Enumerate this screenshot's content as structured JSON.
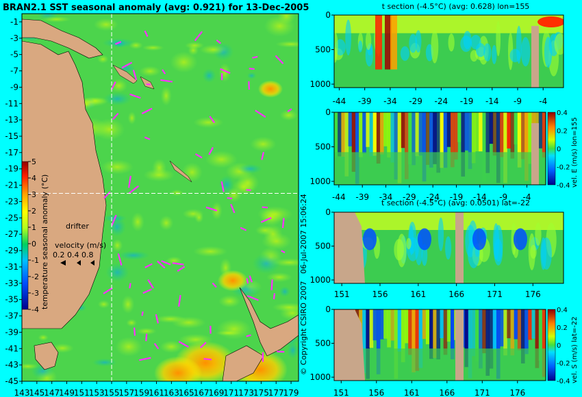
{
  "title": "BRAN2.1 SST seasonal anomaly (avg: 0.921) for 13-Dec-2005",
  "side_text": "06-Jul-2007 15:06:24",
  "copyright": "© Copyright CSIRO 2007",
  "colors": {
    "background": "#00ffff",
    "land": "#d9a880",
    "section_land": "#c8a68a"
  },
  "chart_data": [
    {
      "type": "heatmap",
      "name": "map",
      "title": "BRAN2.1 SST seasonal anomaly (avg: 0.921) for 13-Dec-2005",
      "x_ticks": [
        "143",
        "145",
        "147",
        "149",
        "151",
        "153",
        "155",
        "157",
        "159",
        "161",
        "163",
        "165",
        "167",
        "169",
        "171",
        "173",
        "175",
        "177",
        "179"
      ],
      "y_ticks": [
        "-1",
        "-3",
        "-5",
        "-7",
        "-9",
        "-11",
        "-13",
        "-15",
        "-17",
        "-19",
        "-21",
        "-23",
        "-25",
        "-27",
        "-29",
        "-31",
        "-33",
        "-35",
        "-37",
        "-39",
        "-41",
        "-43",
        "-45"
      ],
      "xlim": [
        143,
        180
      ],
      "ylim": [
        -45,
        0
      ],
      "crosshair": {
        "lon": 155,
        "lat": -22
      },
      "colorbar": {
        "label": "temperature seasonal anomaly (°C)",
        "range": [
          -4,
          5
        ],
        "ticks": [
          "5",
          "4",
          "3",
          "2",
          "1",
          "0",
          "-1",
          "-2",
          "-3",
          "-4"
        ]
      },
      "legend": {
        "drifter": "drifter",
        "velocity": "velocity (m/s)",
        "scale": "0.2 0.4 0.8"
      }
    },
    {
      "type": "heatmap",
      "name": "section1",
      "title": "t section (-4.5°C) (avg: 0.628) lon=155",
      "x_ticks": [
        "-44",
        "-39",
        "-34",
        "-29",
        "-24",
        "-19",
        "-14",
        "-9",
        "-4"
      ],
      "y_ticks": [
        "0",
        "500",
        "1000"
      ],
      "xlim": [
        -45,
        0
      ],
      "ylim": [
        0,
        1050
      ]
    },
    {
      "type": "heatmap",
      "name": "section2",
      "title": "",
      "x_ticks": [
        "-44",
        "-39",
        "-34",
        "-29",
        "-24",
        "-19",
        "-14",
        "-9",
        "-4"
      ],
      "y_ticks": [
        "0",
        "500",
        "1000"
      ],
      "xlim": [
        -45,
        0
      ],
      "ylim": [
        0,
        1050
      ],
      "colorbar": {
        "label": "vel. E (m/s) lon=155",
        "range": [
          -0.4,
          0.4
        ],
        "ticks": [
          "0.4",
          "0.2",
          "0",
          "-0.2",
          "-0.4"
        ]
      }
    },
    {
      "type": "heatmap",
      "name": "section3",
      "title": "t section (-4.5°C) (avg: 0.0501) lat=-22",
      "x_ticks": [
        "151",
        "156",
        "161",
        "166",
        "171",
        "176"
      ],
      "y_ticks": [
        "0",
        "500",
        "1000"
      ],
      "xlim": [
        150,
        180
      ],
      "ylim": [
        0,
        1050
      ]
    },
    {
      "type": "heatmap",
      "name": "section4",
      "title": "",
      "x_ticks": [
        "151",
        "156",
        "161",
        "166",
        "171",
        "176"
      ],
      "y_ticks": [
        "0",
        "500",
        "1000"
      ],
      "xlim": [
        150,
        180
      ],
      "ylim": [
        0,
        1050
      ],
      "colorbar": {
        "label": "vel. S (m/s) lat=-22",
        "range": [
          -0.4,
          0.4
        ],
        "ticks": [
          "0.4",
          "0.2",
          "0",
          "-0.2",
          "-0.4"
        ]
      }
    }
  ]
}
